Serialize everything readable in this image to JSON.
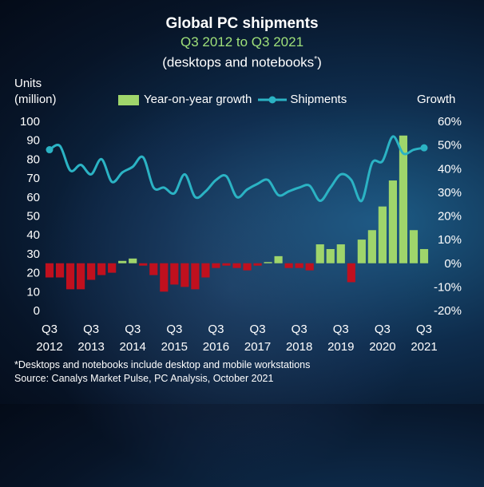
{
  "title": "Global PC shipments",
  "subtitle": "Q3 2012 to Q3 2021",
  "subtitle2": "(desktops and notebooks",
  "subtitle2_sup": "*",
  "subtitle2_end": ")",
  "ylabel_left_line1": "Units",
  "ylabel_left_line2": "(million)",
  "ylabel_right": "Growth",
  "legend": {
    "bars_label": "Year-on-year growth",
    "line_label": "Shipments"
  },
  "footnote": "*Desktops and notebooks include desktop and mobile workstations",
  "source": "Source: Canalys Market Pulse, PC Analysis, October 2021",
  "colors": {
    "bar_positive": "#9fd56b",
    "bar_negative": "#c0101e",
    "line": "#2bb3c4",
    "title_green": "#9fe07a"
  },
  "chart_data": {
    "type": "bar+line",
    "categories": [
      "Q3 2012",
      "Q4 2012",
      "Q1 2013",
      "Q2 2013",
      "Q3 2013",
      "Q4 2013",
      "Q1 2014",
      "Q2 2014",
      "Q3 2014",
      "Q4 2014",
      "Q1 2015",
      "Q2 2015",
      "Q3 2015",
      "Q4 2015",
      "Q1 2016",
      "Q2 2016",
      "Q3 2016",
      "Q4 2016",
      "Q1 2017",
      "Q2 2017",
      "Q3 2017",
      "Q4 2017",
      "Q1 2018",
      "Q2 2018",
      "Q3 2018",
      "Q4 2018",
      "Q1 2019",
      "Q2 2019",
      "Q3 2019",
      "Q4 2019",
      "Q1 2020",
      "Q2 2020",
      "Q3 2020",
      "Q4 2020",
      "Q1 2021",
      "Q2 2021",
      "Q3 2021"
    ],
    "x_tick_labels": [
      {
        "q": "Q3",
        "year": "2012",
        "index": 0
      },
      {
        "q": "Q3",
        "year": "2013",
        "index": 4
      },
      {
        "q": "Q3",
        "year": "2014",
        "index": 8
      },
      {
        "q": "Q3",
        "year": "2015",
        "index": 12
      },
      {
        "q": "Q3",
        "year": "2016",
        "index": 16
      },
      {
        "q": "Q3",
        "year": "2017",
        "index": 20
      },
      {
        "q": "Q3",
        "year": "2018",
        "index": 24
      },
      {
        "q": "Q3",
        "year": "2019",
        "index": 28
      },
      {
        "q": "Q3",
        "year": "2020",
        "index": 32
      },
      {
        "q": "Q3",
        "year": "2021",
        "index": 36
      }
    ],
    "series": [
      {
        "name": "Year-on-year growth",
        "type": "bar",
        "axis": "right",
        "values": [
          -6,
          -6,
          -11,
          -11,
          -7,
          -5,
          -4,
          1,
          2,
          -1,
          -5,
          -12,
          -9,
          -10,
          -11,
          -6,
          -2,
          -1,
          -2,
          -3,
          -1,
          0.5,
          3,
          -2,
          -2,
          -3,
          8,
          6,
          8,
          -8,
          10,
          14,
          24,
          35,
          54,
          14,
          6
        ]
      },
      {
        "name": "Shipments",
        "type": "line",
        "axis": "left",
        "values": [
          85,
          87,
          74,
          77,
          72,
          80,
          68,
          73,
          76,
          81,
          65,
          65,
          62,
          72,
          60,
          63,
          69,
          71,
          60,
          64,
          67,
          69,
          61,
          63,
          65,
          66,
          58,
          65,
          72,
          69,
          58,
          78,
          79,
          92,
          83,
          85,
          86
        ]
      }
    ],
    "y_left": {
      "label": "Units (million)",
      "range": [
        0,
        100
      ],
      "ticks": [
        "0",
        "10",
        "20",
        "30",
        "40",
        "50",
        "60",
        "70",
        "80",
        "90",
        "100"
      ]
    },
    "y_right": {
      "label": "Growth",
      "range": [
        -20,
        60
      ],
      "ticks": [
        "-20%",
        "-10%",
        "0%",
        "10%",
        "20%",
        "30%",
        "40%",
        "50%",
        "60%"
      ]
    }
  }
}
